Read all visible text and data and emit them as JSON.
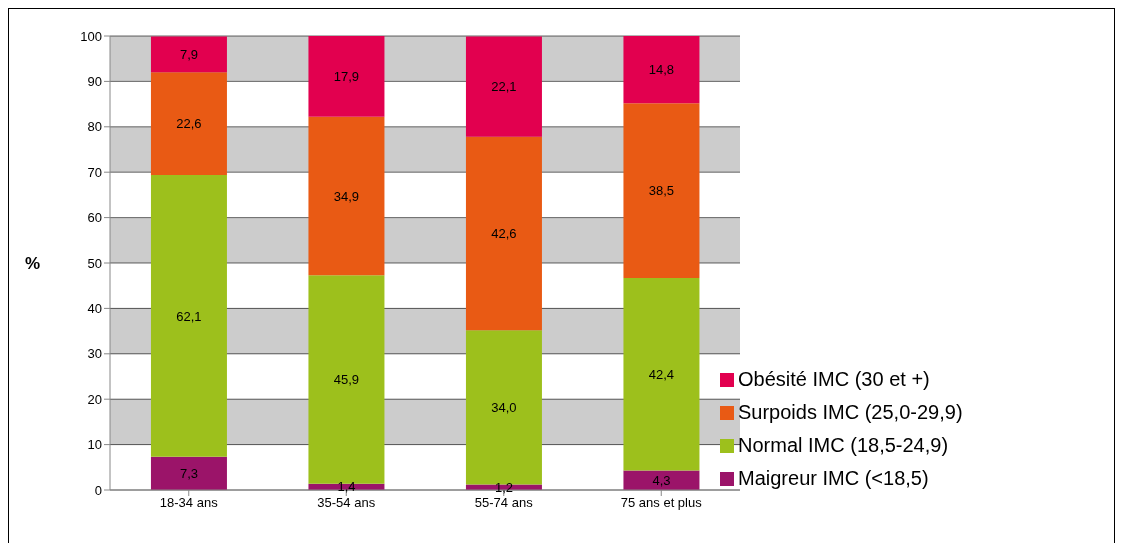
{
  "chart_data": {
    "type": "bar",
    "stacked": true,
    "ylabel": "%",
    "categories": [
      "18-34 ans",
      "35-54 ans",
      "55-74 ans",
      "75 ans et plus"
    ],
    "ylim": [
      0,
      100
    ],
    "yticks": [
      0,
      10,
      20,
      30,
      40,
      50,
      60,
      70,
      80,
      90,
      100
    ],
    "grid": "y",
    "legend": "bottom right",
    "series": [
      {
        "name": "Maigreur IMC (<18,5)",
        "color": "#9b1469",
        "values": [
          7.3,
          1.4,
          1.2,
          4.3
        ],
        "value_labels": [
          "7,3",
          "1,4",
          "1,2",
          "4,3"
        ]
      },
      {
        "name": "Normal IMC (18,5-24,9)",
        "color": "#9dc01c",
        "values": [
          62.1,
          45.9,
          34.0,
          42.4
        ],
        "value_labels": [
          "62,1",
          "45,9",
          "34,0",
          "42,4"
        ]
      },
      {
        "name": "Surpoids IMC (25,0-29,9)",
        "color": "#e95a14",
        "values": [
          22.6,
          34.9,
          42.6,
          38.5
        ],
        "value_labels": [
          "22,6",
          "34,9",
          "42,6",
          "38,5"
        ]
      },
      {
        "name": "Obésité IMC (30 et +)",
        "color": "#e2004f",
        "values": [
          7.9,
          17.9,
          22.1,
          14.8
        ],
        "value_labels": [
          "7,9",
          "17,9",
          "22,1",
          "14,8"
        ]
      }
    ]
  }
}
